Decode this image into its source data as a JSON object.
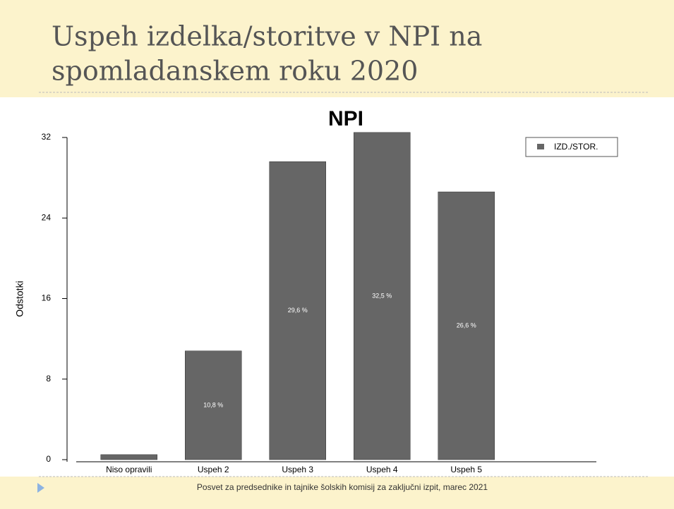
{
  "slide": {
    "title_lines": [
      "Uspeh izdelka/storitve v NPI na",
      "spomladanskem roku 2020"
    ],
    "footer": "Posvet za predsednike in tajnike šolskih komisij za zaključni izpit, marec 2021"
  },
  "chart_data": {
    "type": "bar",
    "title": "NPI",
    "y_label": "Odstotki",
    "categories": [
      "Niso opravili",
      "Uspeh 2",
      "Uspeh 3",
      "Uspeh 4",
      "Uspeh 5"
    ],
    "series": [
      {
        "name": "IZD./STOR.",
        "color": "#666666",
        "values": [
          0.5,
          10.8,
          29.6,
          32.5,
          26.6
        ],
        "value_labels": [
          null,
          "10,8 %",
          "29,6 %",
          "32,5 %",
          "26,6 %"
        ]
      }
    ],
    "ylim": [
      0,
      32
    ],
    "yticks": [
      0,
      8,
      16,
      24,
      32
    ],
    "legend": "top-right"
  }
}
